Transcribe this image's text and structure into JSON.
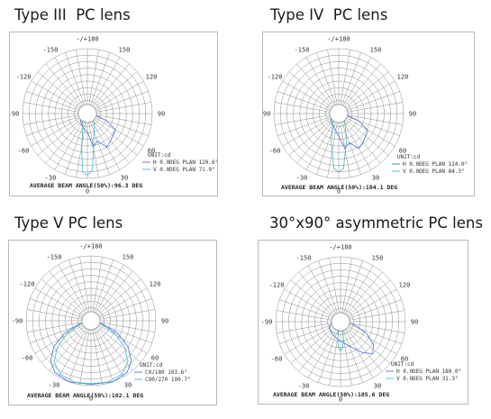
{
  "chart_data": [
    {
      "type": "polar",
      "title": "Type III  PC lens",
      "angle_labels": [
        "-/+180",
        "-150",
        "150",
        "-120",
        "120",
        "-90",
        "90",
        "-60",
        "60",
        "-30",
        "30",
        "0"
      ],
      "unit": "UNIT:cd",
      "legend": [
        {
          "label": "H 0.0DEG PLAN 120.6°",
          "color": "#4a6fd8"
        },
        {
          "label": "V 0.0DEG PLAN 71.9°",
          "color": "#3fb9c6"
        }
      ],
      "average_beam_angle": "AVERAGE BEAM ANGLE(50%):96.3 DEG",
      "series": [
        {
          "name": "H 0.0DEG PLAN 120.6°",
          "color": "#4a6fd8",
          "points": [
            [
              -60,
              0.12
            ],
            [
              -40,
              0.16
            ],
            [
              -25,
              0.2
            ],
            [
              -10,
              0.25
            ],
            [
              0,
              0.28
            ],
            [
              10,
              0.52
            ],
            [
              20,
              0.45
            ],
            [
              30,
              0.6
            ],
            [
              40,
              0.55
            ],
            [
              50,
              0.52
            ],
            [
              60,
              0.5
            ],
            [
              70,
              0.3
            ],
            [
              80,
              0.12
            ]
          ]
        },
        {
          "name": "V 0.0DEG PLAN 71.9°",
          "color": "#3fb9c6",
          "points": [
            [
              -50,
              0.1
            ],
            [
              -35,
              0.14
            ],
            [
              -20,
              0.2
            ],
            [
              -10,
              0.5
            ],
            [
              -5,
              0.9
            ],
            [
              0,
              0.95
            ],
            [
              5,
              0.88
            ],
            [
              10,
              0.55
            ],
            [
              20,
              0.3
            ],
            [
              30,
              0.22
            ],
            [
              40,
              0.15
            ],
            [
              50,
              0.1
            ]
          ]
        }
      ]
    },
    {
      "type": "polar",
      "title": "Type IV  PC lens",
      "angle_labels": [
        "-/+180",
        "-150",
        "150",
        "-120",
        "120",
        "-90",
        "90",
        "-60",
        "60",
        "-30",
        "30",
        "0"
      ],
      "unit": "UNIT:cd",
      "legend": [
        {
          "label": "H 0.0DEG PLAN 124.0°",
          "color": "#4a6fd8"
        },
        {
          "label": "V 0.0DEG PLAN 84.3°",
          "color": "#3fb9c6"
        }
      ],
      "average_beam_angle": "AVERAGE BEAM ANGLE(50%):104.1 DEG",
      "series": [
        {
          "name": "H 0.0DEG PLAN 124.0°",
          "color": "#4a6fd8",
          "points": [
            [
              -60,
              0.14
            ],
            [
              -40,
              0.18
            ],
            [
              -20,
              0.22
            ],
            [
              0,
              0.35
            ],
            [
              10,
              0.55
            ],
            [
              20,
              0.48
            ],
            [
              30,
              0.62
            ],
            [
              40,
              0.58
            ],
            [
              50,
              0.54
            ],
            [
              60,
              0.52
            ],
            [
              70,
              0.32
            ],
            [
              80,
              0.12
            ]
          ]
        },
        {
          "name": "V 0.0DEG PLAN 84.3°",
          "color": "#3fb9c6",
          "points": [
            [
              -50,
              0.12
            ],
            [
              -30,
              0.18
            ],
            [
              -15,
              0.45
            ],
            [
              -5,
              0.85
            ],
            [
              0,
              0.9
            ],
            [
              5,
              0.85
            ],
            [
              15,
              0.45
            ],
            [
              30,
              0.2
            ],
            [
              45,
              0.12
            ]
          ]
        }
      ]
    },
    {
      "type": "polar",
      "title": "Type V PC lens",
      "angle_labels": [
        "-/+180",
        "-150",
        "150",
        "-120",
        "120",
        "-90",
        "90",
        "-60",
        "60",
        "-30",
        "30",
        "0"
      ],
      "unit": "UNIT:cd",
      "legend": [
        {
          "label": "C0/180 103.6°",
          "color": "#4a6fd8"
        },
        {
          "label": "C90/270 100.7°",
          "color": "#3fb9c6"
        }
      ],
      "average_beam_angle": "AVERAGE BEAM ANGLE(50%):102.1 DEG",
      "series": [
        {
          "name": "C0/180 103.6°",
          "color": "#4a6fd8",
          "points": [
            [
              -75,
              0.18
            ],
            [
              -65,
              0.45
            ],
            [
              -55,
              0.7
            ],
            [
              -45,
              0.88
            ],
            [
              -35,
              0.97
            ],
            [
              -20,
              1.0
            ],
            [
              0,
              0.98
            ],
            [
              20,
              1.0
            ],
            [
              35,
              0.97
            ],
            [
              45,
              0.88
            ],
            [
              55,
              0.7
            ],
            [
              65,
              0.45
            ],
            [
              75,
              0.18
            ]
          ]
        },
        {
          "name": "C90/270 100.7°",
          "color": "#3fb9c6",
          "points": [
            [
              -72,
              0.16
            ],
            [
              -62,
              0.42
            ],
            [
              -52,
              0.66
            ],
            [
              -42,
              0.85
            ],
            [
              -30,
              0.95
            ],
            [
              -15,
              0.98
            ],
            [
              0,
              0.97
            ],
            [
              15,
              0.98
            ],
            [
              30,
              0.95
            ],
            [
              42,
              0.85
            ],
            [
              52,
              0.66
            ],
            [
              62,
              0.42
            ],
            [
              72,
              0.16
            ]
          ]
        }
      ]
    },
    {
      "type": "polar",
      "title": "30°x90° asymmetric PC lens",
      "angle_labels": [
        "-/+180",
        "-150",
        "150",
        "-120",
        "120",
        "-90",
        "90",
        "-60",
        "60",
        "-30",
        "30",
        "0"
      ],
      "unit": "UNIT:cd",
      "legend": [
        {
          "label": "H 0.0DEG PLAN 180.0°",
          "color": "#4a6fd8"
        },
        {
          "label": "V 0.0DEG PLAN 31.3°",
          "color": "#3fb9c6"
        }
      ],
      "average_beam_angle": "AVERAGE BEAM ANGLE(50%):105.6 DEG",
      "series": [
        {
          "name": "H 0.0DEG PLAN 180.0°",
          "color": "#4a6fd8",
          "points": [
            [
              -80,
              0.15
            ],
            [
              -60,
              0.2
            ],
            [
              -40,
              0.22
            ],
            [
              -20,
              0.25
            ],
            [
              0,
              0.3
            ],
            [
              20,
              0.4
            ],
            [
              35,
              0.58
            ],
            [
              45,
              0.7
            ],
            [
              55,
              0.62
            ],
            [
              65,
              0.45
            ],
            [
              75,
              0.25
            ],
            [
              85,
              0.12
            ]
          ]
        },
        {
          "name": "V 0.0DEG PLAN 31.3°",
          "color": "#3fb9c6",
          "points": [
            [
              -20,
              0.1
            ],
            [
              -10,
              0.25
            ],
            [
              -5,
              0.4
            ],
            [
              0,
              0.45
            ],
            [
              5,
              0.4
            ],
            [
              10,
              0.25
            ],
            [
              20,
              0.1
            ]
          ]
        }
      ]
    }
  ]
}
